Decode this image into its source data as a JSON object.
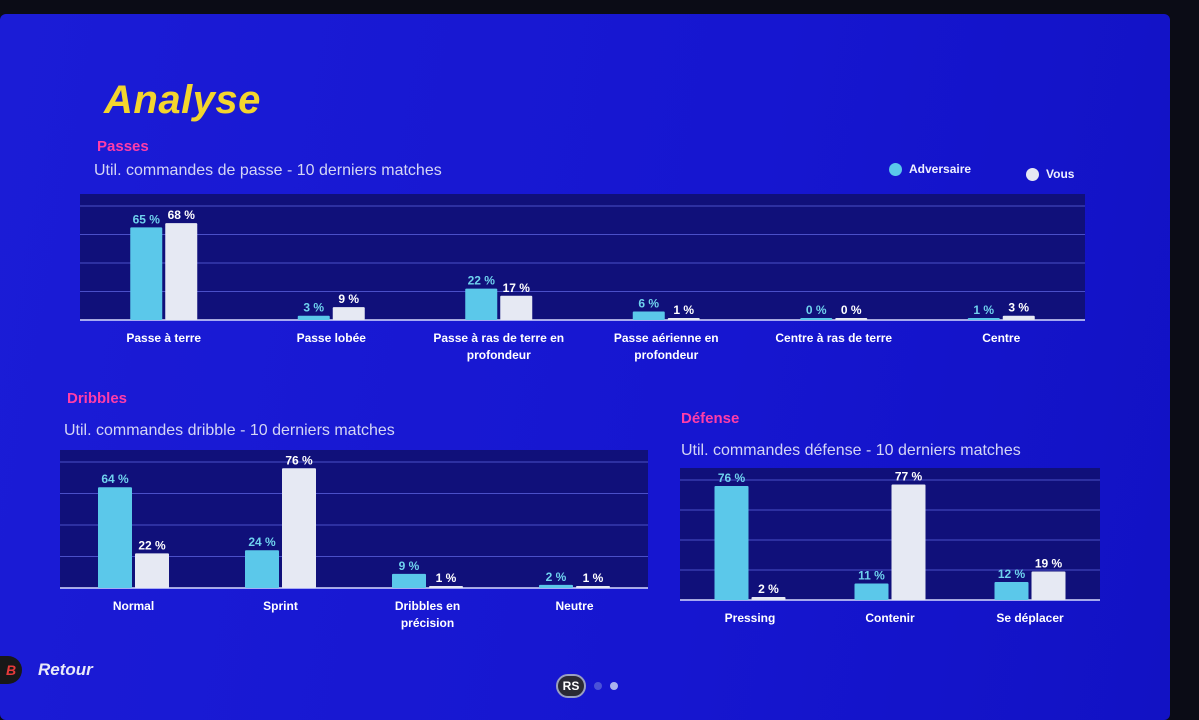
{
  "header": {
    "title": "Analyse"
  },
  "legend": {
    "adversaire": "Adversaire",
    "vous": "Vous"
  },
  "colors": {
    "adversaire": "#5bc8ea",
    "vous": "#e6e9f3",
    "accent": "#ff3da8",
    "title": "#f3d52e"
  },
  "passes": {
    "title": "Passes",
    "subtitle": "Util. commandes de passe - 10 derniers matches",
    "chart_data": {
      "type": "bar",
      "categories": [
        [
          "Passe à terre"
        ],
        [
          "Passe lobée"
        ],
        [
          "Passe à ras de terre en",
          "profondeur"
        ],
        [
          "Passe aérienne en",
          "profondeur"
        ],
        [
          "Centre à ras de terre"
        ],
        [
          "Centre"
        ]
      ],
      "series": [
        {
          "name": "Adversaire",
          "values": [
            65,
            3,
            22,
            6,
            0,
            1
          ],
          "labels": [
            "65 %",
            "3 %",
            "22 %",
            "6 %",
            "0 %",
            "1 %"
          ]
        },
        {
          "name": "Vous",
          "values": [
            68,
            9,
            17,
            1,
            0,
            3
          ],
          "labels": [
            "68 %",
            "9 %",
            "17 %",
            "1 %",
            "0 %",
            "3 %"
          ]
        }
      ],
      "ylim": [
        0,
        80
      ]
    }
  },
  "dribbles": {
    "title": "Dribbles",
    "subtitle": "Util. commandes dribble - 10 derniers matches",
    "chart_data": {
      "type": "bar",
      "categories": [
        [
          "Normal"
        ],
        [
          "Sprint"
        ],
        [
          "Dribbles en",
          "précision"
        ],
        [
          "Neutre"
        ]
      ],
      "series": [
        {
          "name": "Adversaire",
          "values": [
            64,
            24,
            9,
            2
          ],
          "labels": [
            "64 %",
            "24 %",
            "9 %",
            "2 %"
          ]
        },
        {
          "name": "Vous",
          "values": [
            22,
            76,
            1,
            1
          ],
          "labels": [
            "22 %",
            "76 %",
            "1 %",
            "1 %"
          ]
        }
      ],
      "ylim": [
        0,
        80
      ]
    }
  },
  "defense": {
    "title": "Défense",
    "subtitle": "Util. commandes défense - 10 derniers matches",
    "chart_data": {
      "type": "bar",
      "categories": [
        [
          "Pressing"
        ],
        [
          "Contenir"
        ],
        [
          "Se déplacer"
        ]
      ],
      "series": [
        {
          "name": "Adversaire",
          "values": [
            76,
            11,
            12
          ],
          "labels": [
            "76 %",
            "11 %",
            "12 %"
          ]
        },
        {
          "name": "Vous",
          "values": [
            2,
            77,
            19
          ],
          "labels": [
            "2 %",
            "77 %",
            "19 %"
          ]
        }
      ],
      "ylim": [
        0,
        80
      ]
    }
  },
  "footer": {
    "button_glyph": "B",
    "back_label": "Retour",
    "pager_button": "RS",
    "pages": 2,
    "active_page": 2
  }
}
